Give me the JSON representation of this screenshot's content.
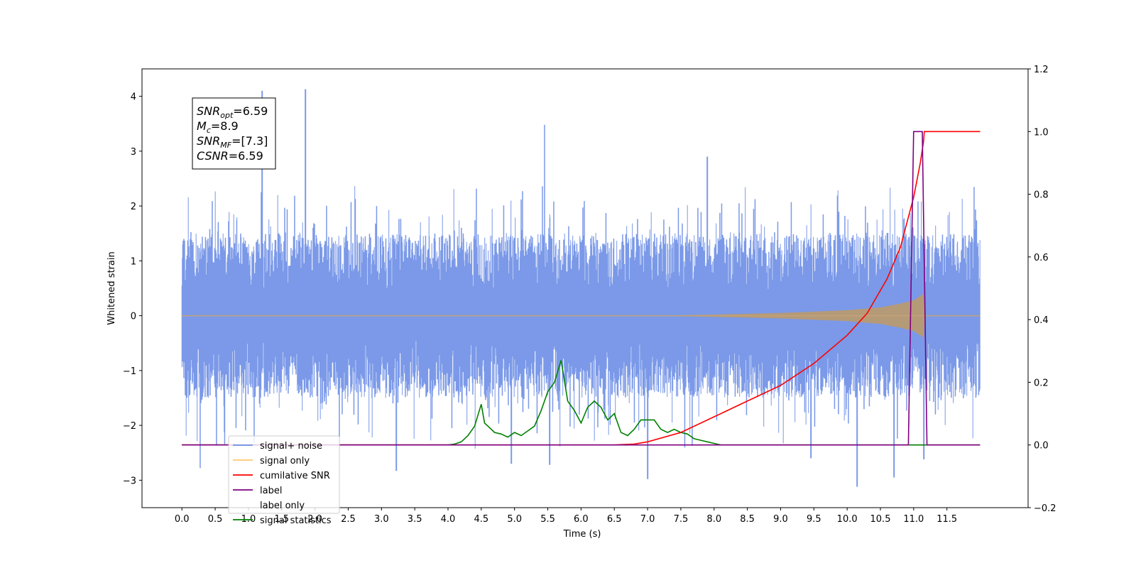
{
  "chart_data": {
    "type": "line",
    "title": "",
    "xlabel": "Time (s)",
    "ylabel": "Whitened strain",
    "xlim": [
      -0.6,
      12.72
    ],
    "xticks": [
      0.0,
      0.5,
      1.0,
      1.5,
      2.0,
      2.5,
      3.0,
      3.5,
      4.0,
      4.5,
      5.0,
      5.5,
      6.0,
      6.5,
      7.0,
      7.5,
      8.0,
      8.5,
      9.0,
      9.5,
      10.0,
      10.5,
      11.0,
      11.5
    ],
    "xtick_labels": [
      "0.0",
      "0.5",
      "1.0",
      "1.5",
      "2.0",
      "2.5",
      "3.0",
      "3.5",
      "4.0",
      "4.5",
      "5.0",
      "5.5",
      "6.0",
      "6.5",
      "7.0",
      "7.5",
      "8.0",
      "8.5",
      "9.0",
      "9.5",
      "10.0",
      "10.5",
      "11.0",
      "11.5"
    ],
    "ylim_left": [
      -3.5,
      4.5
    ],
    "yticks_left": [
      4,
      3,
      2,
      1,
      0,
      -1,
      -2,
      -3
    ],
    "ytick_labels_left": [
      "4",
      "3",
      "2",
      "1",
      "0",
      "−1",
      "−2",
      "−3"
    ],
    "ylim_right": [
      -0.2,
      1.2
    ],
    "yticks_right": [
      1.2,
      1.0,
      0.8,
      0.6,
      0.4,
      0.2,
      0.0,
      -0.2
    ],
    "ytick_labels_right": [
      "1.2",
      "1.0",
      "0.8",
      "0.6",
      "0.4",
      "0.2",
      "0.0",
      "−0.2"
    ],
    "grid": false,
    "legend_position": "lower-left",
    "annotation": [
      {
        "base": "SNR",
        "sub": "opt",
        "value": "=6.59"
      },
      {
        "base": "M",
        "sub": "c",
        "value": "=8.9"
      },
      {
        "base": "SNR",
        "sub": "MF",
        "value": "=[7.3]"
      },
      {
        "base": "CSNR",
        "sub": "",
        "value": "=6.59"
      }
    ],
    "series": [
      {
        "name": "signal+ noise",
        "axis": "left",
        "color": "#6d8ee6",
        "t_range": [
          0.0,
          12.0
        ],
        "typical_range": [
          -1.5,
          1.5
        ],
        "spikes": [
          [
            1.2,
            4.1
          ],
          [
            1.85,
            4.13
          ],
          [
            5.45,
            3.48
          ],
          [
            7.9,
            2.9
          ],
          [
            0.28,
            -2.78
          ],
          [
            3.22,
            -2.83
          ],
          [
            5.53,
            -2.72
          ],
          [
            7.0,
            -2.98
          ],
          [
            10.15,
            -3.12
          ],
          [
            10.7,
            -2.95
          ],
          [
            11.15,
            -2.62
          ],
          [
            9.45,
            -2.6
          ],
          [
            4.95,
            -2.7
          ]
        ]
      },
      {
        "name": "signal only",
        "axis": "left",
        "color": "#ffa500",
        "t_range": [
          0.0,
          12.0
        ],
        "envelope": [
          [
            7.0,
            0.0
          ],
          [
            8.0,
            0.02
          ],
          [
            9.0,
            0.05
          ],
          [
            10.0,
            0.1
          ],
          [
            10.5,
            0.15
          ],
          [
            10.8,
            0.22
          ],
          [
            11.0,
            0.28
          ],
          [
            11.15,
            0.4
          ],
          [
            11.17,
            0.0
          ],
          [
            12.0,
            0.0
          ]
        ]
      },
      {
        "name": "cumilative SNR",
        "axis": "right",
        "color": "#ff0000",
        "x": [
          0.0,
          6.5,
          6.8,
          7.0,
          7.5,
          8.0,
          8.5,
          9.0,
          9.5,
          10.0,
          10.3,
          10.6,
          10.8,
          11.0,
          11.1,
          11.15,
          11.16,
          12.0
        ],
        "y": [
          0.0,
          0.0,
          0.003,
          0.01,
          0.04,
          0.09,
          0.14,
          0.19,
          0.26,
          0.35,
          0.42,
          0.53,
          0.63,
          0.79,
          0.9,
          0.97,
          1.0,
          1.0
        ]
      },
      {
        "name": "label",
        "axis": "right",
        "color": "#800080",
        "x": [
          0.0,
          10.92,
          11.0,
          11.13,
          11.2,
          12.0
        ],
        "y": [
          0.0,
          0.0,
          1.0,
          1.0,
          0.0,
          0.0
        ]
      },
      {
        "name": "label only",
        "axis": "right",
        "color": "#000000",
        "x": [],
        "y": []
      },
      {
        "name": "signal statistics",
        "axis": "right",
        "color": "#008000",
        "x": [
          0.0,
          4.0,
          4.1,
          4.2,
          4.3,
          4.4,
          4.5,
          4.55,
          4.6,
          4.7,
          4.8,
          4.9,
          5.0,
          5.1,
          5.2,
          5.3,
          5.4,
          5.5,
          5.6,
          5.7,
          5.8,
          5.9,
          6.0,
          6.1,
          6.2,
          6.3,
          6.4,
          6.5,
          6.6,
          6.7,
          6.8,
          6.9,
          7.0,
          7.1,
          7.2,
          7.3,
          7.4,
          7.5,
          7.6,
          7.7,
          7.8,
          7.9,
          8.0,
          8.1,
          12.0
        ],
        "y": [
          0.0,
          0.0,
          0.003,
          0.01,
          0.03,
          0.06,
          0.13,
          0.07,
          0.06,
          0.04,
          0.035,
          0.025,
          0.04,
          0.03,
          0.045,
          0.06,
          0.11,
          0.17,
          0.2,
          0.27,
          0.14,
          0.11,
          0.07,
          0.12,
          0.14,
          0.12,
          0.08,
          0.1,
          0.04,
          0.03,
          0.05,
          0.08,
          0.08,
          0.08,
          0.05,
          0.04,
          0.05,
          0.04,
          0.035,
          0.02,
          0.015,
          0.01,
          0.005,
          0.0,
          0.0
        ]
      }
    ]
  }
}
